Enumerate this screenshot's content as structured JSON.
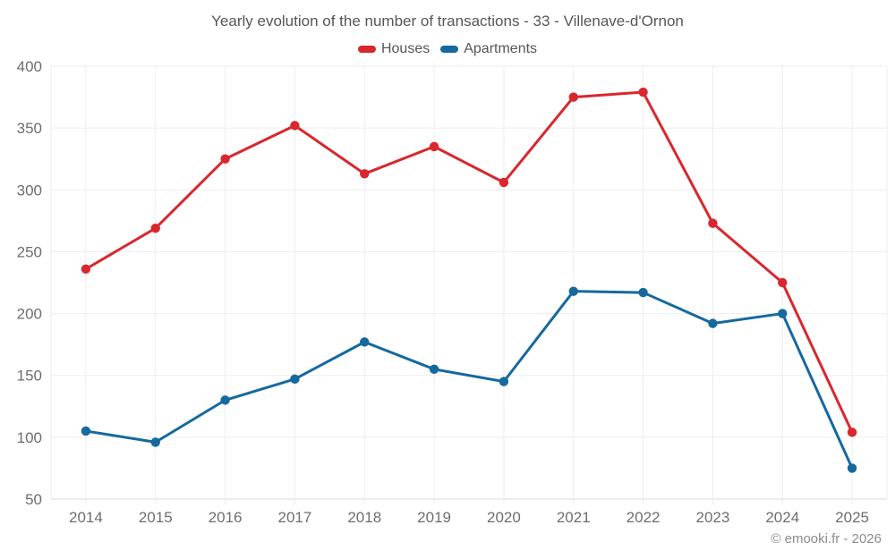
{
  "title": "Yearly evolution of the number of transactions - 33 - Villenave-d'Ornon",
  "footer": "© emooki.fr - 2026",
  "colors": {
    "grid": "#ededed",
    "axis": "#d9d9d9",
    "title_text": "#565656",
    "tick_text": "#6e6e6e",
    "footer_text": "#8c8c8c",
    "background": "#ffffff"
  },
  "chart_data": {
    "type": "line",
    "title": "Yearly evolution of the number of transactions - 33 - Villenave-d'Ornon",
    "categories": [
      "2014",
      "2015",
      "2016",
      "2017",
      "2018",
      "2019",
      "2020",
      "2021",
      "2022",
      "2023",
      "2024",
      "2025"
    ],
    "series": [
      {
        "name": "Houses",
        "color": "#d9272e",
        "values": [
          236,
          269,
          325,
          352,
          313,
          335,
          306,
          375,
          379,
          273,
          225,
          104
        ]
      },
      {
        "name": "Apartments",
        "color": "#15699f",
        "values": [
          105,
          96,
          130,
          147,
          177,
          155,
          145,
          218,
          217,
          192,
          200,
          75
        ]
      }
    ],
    "xlabel": "",
    "ylabel": "",
    "ylim": [
      50,
      400
    ],
    "ytick_step": 50,
    "grid": true,
    "legend_position": "top",
    "marker": "circle"
  }
}
